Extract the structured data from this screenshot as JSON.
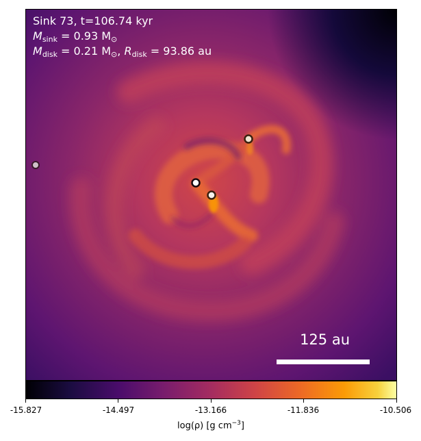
{
  "annotations": {
    "title": "Sink 73, t=106.74 kyr",
    "m_sink_sym": "M",
    "m_sink_sub": "sink",
    "m_sink_val": " = 0.93 M",
    "m_sink_unit_sub": "⊙",
    "m_disk_sym": "M",
    "m_disk_sub": "disk",
    "m_disk_val": " = 0.21 M",
    "m_disk_unit_sub": "⊙",
    "sep": ", ",
    "r_disk_sym": "R",
    "r_disk_sub": "disk",
    "r_disk_val": " = 93.86 au"
  },
  "scale_bar": {
    "label": "125 au"
  },
  "colorbar": {
    "ticks": [
      "-15.827",
      "-14.497",
      "-13.166",
      "-11.836",
      "-10.506"
    ],
    "label_main": "log(ρ) [g cm",
    "label_exp": "−3",
    "label_end": "]",
    "colormap": "inferno"
  },
  "colors": {
    "background_dark": "#2c0b5a",
    "disk_mid": "#b5375e",
    "arm_bright": "#e8653a",
    "sink_fill": "#f4f0ea",
    "sink_ring": "#3a2010"
  },
  "sinks": [
    {
      "name": "sink-far-left"
    },
    {
      "name": "sink-central"
    },
    {
      "name": "sink-lower"
    },
    {
      "name": "sink-upper-right"
    }
  ]
}
